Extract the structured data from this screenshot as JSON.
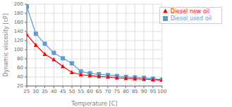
{
  "chart_data": {
    "type": "line",
    "x": [
      25,
      30,
      35,
      40,
      45,
      50,
      55,
      60,
      65,
      70,
      75,
      80,
      85,
      90,
      95,
      100
    ],
    "series": [
      {
        "name": "Diesel used oil",
        "color": "#5B9BD5",
        "marker": "square",
        "values": [
          195,
          135,
          113,
          93,
          81,
          70,
          52,
          48,
          46,
          44,
          42,
          40,
          39,
          38,
          36,
          34
        ]
      },
      {
        "name": "Diesel new oil",
        "color": "#FF0000",
        "marker": "triangle",
        "values": [
          133,
          110,
          90,
          78,
          63,
          50,
          45,
          43,
          41,
          40,
          38,
          37,
          36,
          35,
          34,
          33
        ]
      }
    ],
    "xlabel": "Temperature [C]",
    "ylabel": "Dynamic viscosity [cP]",
    "xlim": [
      25,
      100
    ],
    "ylim": [
      20,
      200
    ],
    "xticks": [
      25,
      30,
      35,
      40,
      45,
      50,
      55,
      60,
      65,
      70,
      75,
      80,
      85,
      90,
      95,
      100
    ],
    "yticks": [
      20,
      40,
      60,
      80,
      100,
      120,
      140,
      160,
      180,
      200
    ],
    "grid": true,
    "legend": "upper right"
  }
}
